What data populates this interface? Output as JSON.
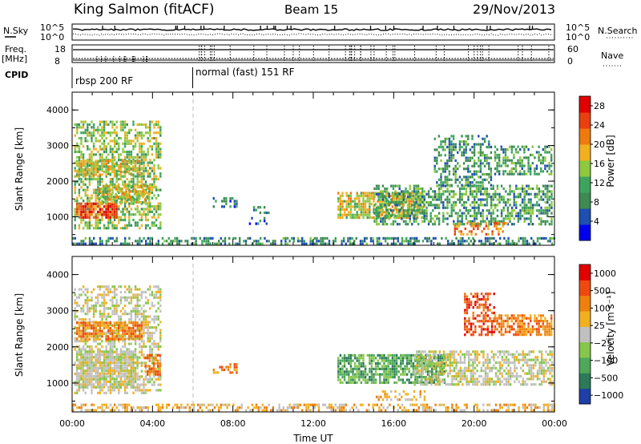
{
  "header": {
    "station": "King Salmon (fitACF)",
    "beam": "Beam 15",
    "date": "29/Nov/2013"
  },
  "side_labels": {
    "nsky": "N.Sky",
    "nsearch": "N.Search",
    "freq": "Freq.",
    "mhz": "[MHz]",
    "nave": "Nave",
    "cpid": "CPID"
  },
  "status_panels": {
    "noise_ticks_left": [
      "10^5",
      "10^0"
    ],
    "noise_ticks_right": [
      "10^5",
      "10^0"
    ],
    "freq_ticks": [
      "18",
      "8"
    ],
    "nave_ticks": [
      "60",
      "0"
    ]
  },
  "cpid_segments": [
    {
      "label": "rbsp 200 RF",
      "start_h": 0
    },
    {
      "label": "normal (fast) 151 RF",
      "start_h": 6
    }
  ],
  "colors": {
    "power": [
      "#0000ee",
      "#1f4fb0",
      "#3e8a52",
      "#3da45e",
      "#8dc83d",
      "#f0b020",
      "#ee7a10",
      "#e84010",
      "#e00000"
    ],
    "velocity": [
      "#1e3fa8",
      "#2c7a5a",
      "#4fa85a",
      "#86c64a",
      "#c0c0c0",
      "#f0b020",
      "#ee8010",
      "#ee4a10",
      "#e00000"
    ]
  },
  "chart_data": [
    {
      "type": "heatmap",
      "name": "power",
      "ylabel": "Slant Range [km]",
      "xlabel": "",
      "xlim": [
        0,
        24
      ],
      "ylim": [
        200,
        4500
      ],
      "yticks": [
        "1000",
        "2000",
        "3000",
        "4000"
      ],
      "xticks": [
        "00:00",
        "04:00",
        "08:00",
        "12:00",
        "16:00",
        "20:00",
        "00:00"
      ],
      "colorbar": {
        "label": "Power [dB]",
        "ticks": [
          "28",
          "24",
          "20",
          "16",
          "12",
          "8",
          "4"
        ],
        "range": [
          0,
          30
        ]
      },
      "scatter_regions": [
        {
          "t": [
            0.1,
            4.4
          ],
          "r": [
            700,
            3700
          ],
          "v": 14,
          "d": 0.55
        },
        {
          "t": [
            0.2,
            2.2
          ],
          "r": [
            950,
            1400
          ],
          "v": 25,
          "d": 0.85
        },
        {
          "t": [
            0.2,
            3.5
          ],
          "r": [
            2200,
            2600
          ],
          "v": 17,
          "d": 0.65
        },
        {
          "t": [
            1.3,
            3.8
          ],
          "r": [
            1400,
            1900
          ],
          "v": 17,
          "d": 0.7
        },
        {
          "t": [
            7.0,
            8.3
          ],
          "r": [
            1250,
            1550
          ],
          "v": 7,
          "d": 0.5
        },
        {
          "t": [
            8.8,
            9.8
          ],
          "r": [
            800,
            1300
          ],
          "v": 6,
          "d": 0.25
        },
        {
          "t": [
            13.2,
            17.5
          ],
          "r": [
            1000,
            1700
          ],
          "v": 17,
          "d": 0.75
        },
        {
          "t": [
            15.0,
            23.9
          ],
          "r": [
            800,
            1900
          ],
          "v": 10,
          "d": 0.55
        },
        {
          "t": [
            18.0,
            20.8
          ],
          "r": [
            1900,
            3300
          ],
          "v": 9,
          "d": 0.45
        },
        {
          "t": [
            21.0,
            23.9
          ],
          "r": [
            2200,
            3000
          ],
          "v": 10,
          "d": 0.55
        },
        {
          "t": [
            19.0,
            21.6
          ],
          "r": [
            500,
            850
          ],
          "v": 22,
          "d": 0.45
        },
        {
          "t": [
            0,
            24
          ],
          "r": [
            250,
            430
          ],
          "v": 8,
          "d": 0.5
        }
      ]
    },
    {
      "type": "heatmap",
      "name": "velocity",
      "ylabel": "Slant Range [km]",
      "xlabel": "Time UT",
      "xlim": [
        0,
        24
      ],
      "ylim": [
        200,
        4500
      ],
      "yticks": [
        "1000",
        "2000",
        "3000",
        "4000"
      ],
      "xticks": [
        "00:00",
        "04:00",
        "08:00",
        "12:00",
        "16:00",
        "20:00",
        "00:00"
      ],
      "colorbar": {
        "label": "Velocity [m s⁻¹]",
        "ticks": [
          "1000",
          "500",
          "100",
          "25",
          "−25",
          "−100",
          "−500",
          "−1000"
        ]
      },
      "scatter_regions": [
        {
          "t": [
            0.1,
            4.4
          ],
          "r": [
            700,
            3700
          ],
          "v": 4,
          "d": 0.5
        },
        {
          "t": [
            0.2,
            3.5
          ],
          "r": [
            2200,
            2700
          ],
          "v": 6,
          "d": 0.75
        },
        {
          "t": [
            0.2,
            3.3
          ],
          "r": [
            900,
            1900
          ],
          "v": 4,
          "d": 0.8
        },
        {
          "t": [
            3.6,
            4.4
          ],
          "r": [
            1200,
            1800
          ],
          "v": 6,
          "d": 0.7
        },
        {
          "t": [
            7.0,
            8.3
          ],
          "r": [
            1250,
            1550
          ],
          "v": 6,
          "d": 0.5
        },
        {
          "t": [
            13.2,
            18.5
          ],
          "r": [
            1000,
            1800
          ],
          "v": 2,
          "d": 0.75
        },
        {
          "t": [
            17.0,
            23.9
          ],
          "r": [
            950,
            1900
          ],
          "v": 4,
          "d": 0.6
        },
        {
          "t": [
            19.5,
            21.0
          ],
          "r": [
            2300,
            3500
          ],
          "v": 7,
          "d": 0.5
        },
        {
          "t": [
            21.0,
            23.9
          ],
          "r": [
            2300,
            2900
          ],
          "v": 6,
          "d": 0.65
        },
        {
          "t": [
            15.0,
            17.5
          ],
          "r": [
            500,
            800
          ],
          "v": 5,
          "d": 0.35
        },
        {
          "t": [
            0,
            24
          ],
          "r": [
            250,
            430
          ],
          "v": 5,
          "d": 0.45
        }
      ]
    }
  ]
}
